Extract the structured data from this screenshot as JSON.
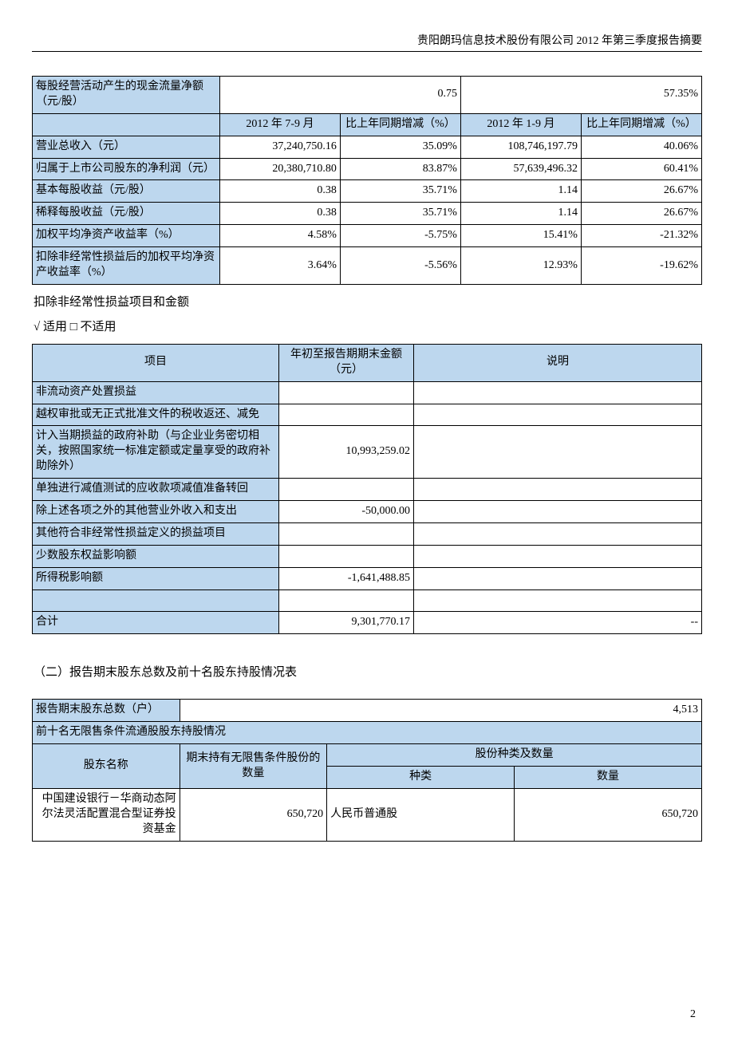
{
  "header": "贵阳朗玛信息技术股份有限公司 2012 年第三季度报告摘要",
  "page_number": "2",
  "colors": {
    "header_bg": "#bdd7ee",
    "border": "#000000",
    "text": "#000000",
    "page_bg": "#ffffff"
  },
  "fonts": {
    "base_family": "SimSun",
    "base_size_pt": 10.5,
    "line_height": 1.35
  },
  "table1": {
    "type": "table",
    "col_widths_pct": [
      28,
      18,
      18,
      18,
      18
    ],
    "top_row": {
      "label": "每股经营活动产生的现金流量净额（元/股）",
      "val1": "0.75",
      "val2": "57.35%"
    },
    "period_headers": {
      "c2": "2012 年 7-9 月",
      "c3": "比上年同期增减（%）",
      "c4": "2012 年 1-9 月",
      "c5": "比上年同期增减（%）"
    },
    "rows": [
      {
        "label": "营业总收入（元）",
        "c2": "37,240,750.16",
        "c3": "35.09%",
        "c4": "108,746,197.79",
        "c5": "40.06%"
      },
      {
        "label": "归属于上市公司股东的净利润（元）",
        "c2": "20,380,710.80",
        "c3": "83.87%",
        "c4": "57,639,496.32",
        "c5": "60.41%"
      },
      {
        "label": "基本每股收益（元/股）",
        "c2": "0.38",
        "c3": "35.71%",
        "c4": "1.14",
        "c5": "26.67%"
      },
      {
        "label": "稀释每股收益（元/股）",
        "c2": "0.38",
        "c3": "35.71%",
        "c4": "1.14",
        "c5": "26.67%"
      },
      {
        "label": "加权平均净资产收益率（%）",
        "c2": "4.58%",
        "c3": "-5.75%",
        "c4": "15.41%",
        "c5": "-21.32%"
      },
      {
        "label": "扣除非经常性损益后的加权平均净资产收益率（%）",
        "c2": "3.64%",
        "c3": "-5.56%",
        "c4": "12.93%",
        "c5": "-19.62%"
      }
    ]
  },
  "text_after_t1_1": "扣除非经常性损益项目和金额",
  "text_after_t1_2": "√ 适用 □ 不适用",
  "table2": {
    "type": "table",
    "headers": {
      "c1": "项目",
      "c2": "年初至报告期期末金额（元）",
      "c3": "说明"
    },
    "rows": [
      {
        "label": "非流动资产处置损益",
        "amount": "",
        "note": ""
      },
      {
        "label": "越权审批或无正式批准文件的税收返还、减免",
        "amount": "",
        "note": ""
      },
      {
        "label": "计入当期损益的政府补助（与企业业务密切相关，按照国家统一标准定额或定量享受的政府补助除外）",
        "amount": "10,993,259.02",
        "note": ""
      },
      {
        "label": "单独进行减值测试的应收款项减值准备转回",
        "amount": "",
        "note": ""
      },
      {
        "label": "除上述各项之外的其他营业外收入和支出",
        "amount": "-50,000.00",
        "note": ""
      },
      {
        "label": "其他符合非经常性损益定义的损益项目",
        "amount": "",
        "note": ""
      },
      {
        "label": "少数股东权益影响额",
        "amount": "",
        "note": ""
      },
      {
        "label": "所得税影响额",
        "amount": "-1,641,488.85",
        "note": ""
      }
    ],
    "blank_row": true,
    "total": {
      "label": "合计",
      "amount": "9,301,770.17",
      "note": "--"
    }
  },
  "section2_title": "（二）报告期末股东总数及前十名股东持股情况表",
  "table3": {
    "type": "table",
    "shareholder_total": {
      "label": "报告期末股东总数（户）",
      "value": "4,513"
    },
    "subtitle": "前十名无限售条件流通股股东持股情况",
    "headers": {
      "name": "股东名称",
      "qty": "期末持有无限售条件股份的数量",
      "kind_group": "股份种类及数量",
      "kind": "种类",
      "num": "数量"
    },
    "rows": [
      {
        "name": "中国建设银行－华商动态阿尔法灵活配置混合型证券投资基金",
        "qty": "650,720",
        "kind": "人民币普通股",
        "num": "650,720"
      }
    ]
  }
}
